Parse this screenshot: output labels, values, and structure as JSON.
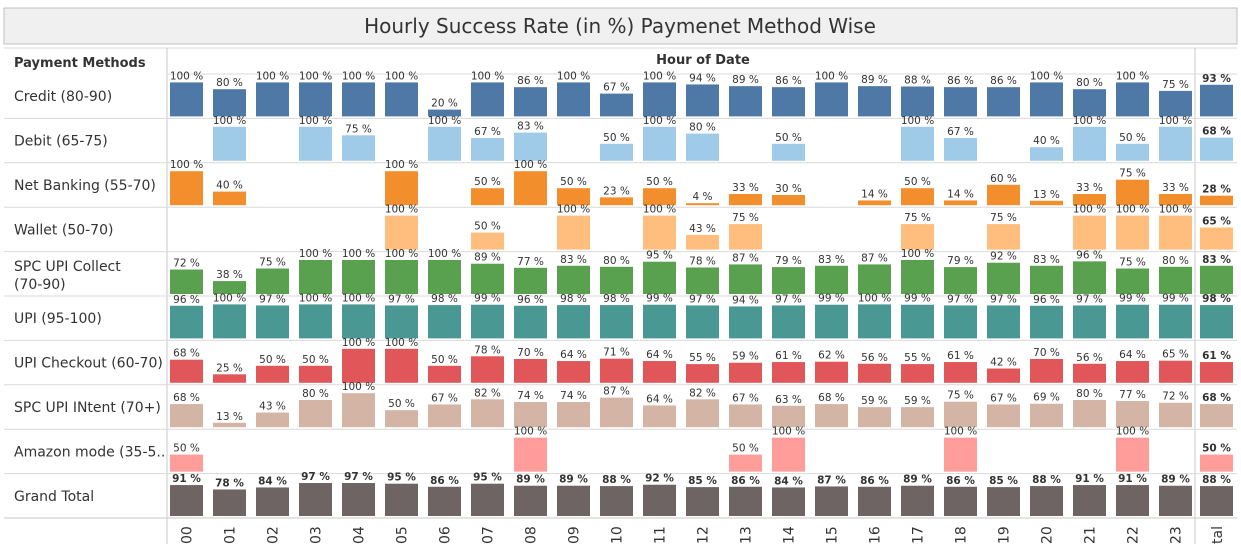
{
  "chart_data": {
    "type": "bar",
    "title": "Hourly Success Rate (in %) Paymenet Method Wise",
    "row_header": "Payment Methods",
    "column_header": "Hour of Date",
    "hours": [
      "00",
      "01",
      "02",
      "03",
      "04",
      "05",
      "06",
      "07",
      "08",
      "09",
      "10",
      "11",
      "12",
      "13",
      "14",
      "15",
      "16",
      "17",
      "18",
      "19",
      "20",
      "21",
      "22",
      "23"
    ],
    "total_label": "tal",
    "unit": "%",
    "series": [
      {
        "name": "Credit (80-90)",
        "color": "#4e79a7",
        "values": [
          100,
          80,
          100,
          100,
          100,
          100,
          20,
          100,
          86,
          100,
          67,
          100,
          94,
          89,
          86,
          100,
          89,
          88,
          86,
          86,
          100,
          80,
          100,
          75
        ],
        "total": 93
      },
      {
        "name": "Debit (65-75)",
        "color": "#a0cbe8",
        "values": [
          null,
          100,
          null,
          100,
          75,
          null,
          100,
          67,
          83,
          null,
          50,
          100,
          80,
          null,
          50,
          null,
          null,
          100,
          67,
          null,
          40,
          100,
          50,
          100
        ],
        "total": 68
      },
      {
        "name": "Net Banking (55-70)",
        "color": "#f28e2b",
        "values": [
          100,
          40,
          null,
          null,
          null,
          100,
          null,
          50,
          100,
          50,
          23,
          50,
          4,
          33,
          30,
          null,
          14,
          50,
          14,
          60,
          13,
          33,
          75,
          33
        ],
        "total": 28
      },
      {
        "name": "Wallet (50-70)",
        "color": "#ffbe7d",
        "values": [
          null,
          null,
          null,
          null,
          null,
          100,
          null,
          50,
          null,
          100,
          null,
          100,
          43,
          75,
          null,
          null,
          null,
          75,
          null,
          75,
          null,
          100,
          100,
          100
        ],
        "total": 65
      },
      {
        "name": "SPC UPI Collect (70-90)",
        "color": "#59a14f",
        "values": [
          72,
          38,
          75,
          100,
          100,
          100,
          100,
          89,
          77,
          83,
          80,
          95,
          78,
          87,
          79,
          83,
          87,
          100,
          79,
          92,
          83,
          96,
          75,
          80
        ],
        "total": 83
      },
      {
        "name": "UPI (95-100)",
        "color": "#499894",
        "values": [
          96,
          100,
          97,
          100,
          100,
          97,
          98,
          99,
          96,
          98,
          98,
          99,
          97,
          94,
          97,
          99,
          100,
          99,
          97,
          97,
          96,
          97,
          99,
          99
        ],
        "total": 98
      },
      {
        "name": "UPI Checkout (60-70)",
        "color": "#e15759",
        "values": [
          68,
          25,
          50,
          50,
          100,
          100,
          50,
          78,
          70,
          64,
          71,
          64,
          55,
          59,
          61,
          62,
          56,
          55,
          61,
          42,
          70,
          56,
          64,
          65
        ],
        "total": 61
      },
      {
        "name": "SPC UPI INtent (70+)",
        "color": "#d4b4a5",
        "values": [
          68,
          13,
          43,
          80,
          100,
          50,
          67,
          82,
          74,
          74,
          87,
          64,
          82,
          67,
          63,
          68,
          59,
          59,
          75,
          67,
          69,
          80,
          77,
          72
        ],
        "total": 68
      },
      {
        "name": "Amazon mode (35-5..",
        "color": "#ff9d9a",
        "values": [
          50,
          null,
          null,
          null,
          null,
          null,
          null,
          null,
          100,
          null,
          null,
          null,
          null,
          50,
          100,
          null,
          null,
          null,
          100,
          null,
          null,
          null,
          100,
          null
        ],
        "total": 50
      },
      {
        "name": "Grand Total",
        "color": "#6f6464",
        "values": [
          91,
          78,
          84,
          97,
          97,
          95,
          86,
          95,
          89,
          89,
          88,
          92,
          85,
          86,
          84,
          87,
          86,
          89,
          86,
          85,
          88,
          91,
          91,
          89
        ],
        "total": 88
      }
    ]
  }
}
